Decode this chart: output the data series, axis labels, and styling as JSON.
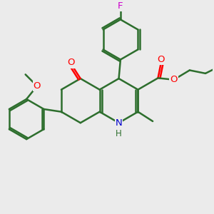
{
  "bg_color": "#ebebeb",
  "bond_color": "#2d6e2d",
  "bond_width": 1.8,
  "atom_colors": {
    "O": "#ff0000",
    "N": "#0000cc",
    "F": "#cc00cc",
    "C": "#2d6e2d"
  },
  "font_size": 9.5,
  "figsize": [
    3.0,
    3.0
  ],
  "dpi": 100
}
